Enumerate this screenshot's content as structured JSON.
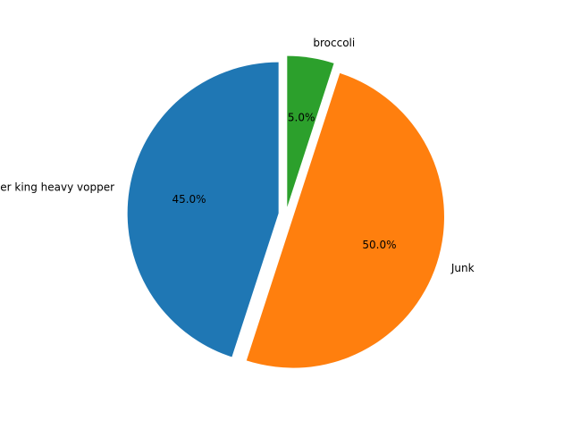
{
  "chart_data": {
    "type": "pie",
    "title": "",
    "start_angle_deg": 90,
    "direction": "counterclockwise",
    "slices": [
      {
        "label": "burger king heavy vopper",
        "value": 45.0,
        "pct_label": "45.0%",
        "color": "#1f77b4",
        "explode": 0.05
      },
      {
        "label": "Junk",
        "value": 50.0,
        "pct_label": "50.0%",
        "color": "#ff7f0e",
        "explode": 0.05
      },
      {
        "label": "broccoli",
        "value": 5.0,
        "pct_label": "5.0%",
        "color": "#2ca02c",
        "explode": 0.05
      }
    ],
    "legend": "none"
  }
}
